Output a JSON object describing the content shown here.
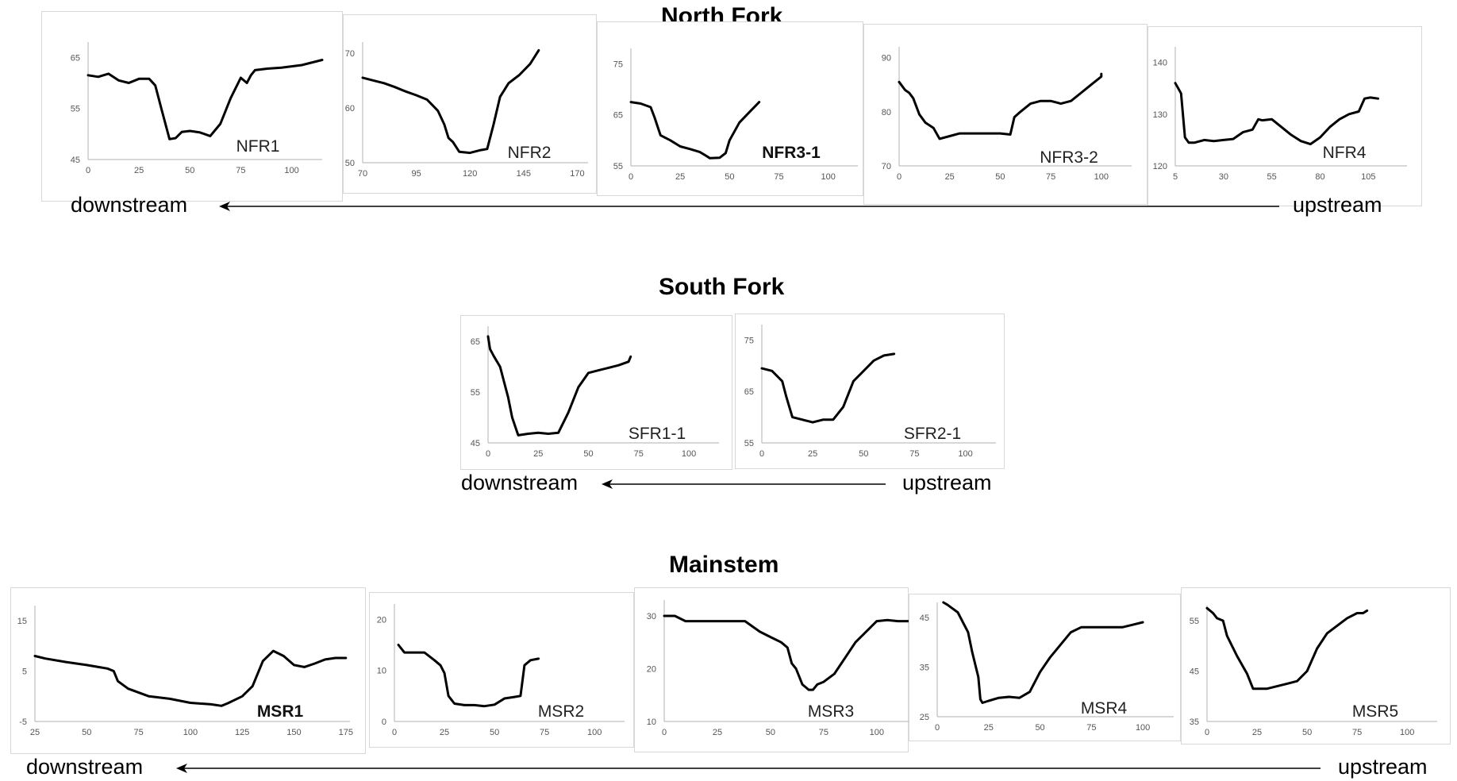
{
  "sections": [
    {
      "id": "north",
      "title": "North Fork",
      "downstream": "downstream",
      "upstream": "upstream"
    },
    {
      "id": "south",
      "title": "South Fork",
      "downstream": "downstream",
      "upstream": "upstream"
    },
    {
      "id": "main",
      "title": "Mainstem",
      "downstream": "downstream",
      "upstream": "upstream"
    }
  ],
  "chart_data": [
    {
      "type": "line",
      "section": "north",
      "label": "NFR1",
      "label_bold": false,
      "xticks": [
        0,
        25,
        50,
        75,
        100
      ],
      "xlim": [
        0,
        115
      ],
      "yticks": [
        45,
        55,
        65
      ],
      "ylim": [
        45,
        68
      ],
      "x": [
        0,
        5,
        10,
        15,
        20,
        25,
        30,
        33,
        36,
        40,
        43,
        46,
        50,
        55,
        60,
        65,
        70,
        75,
        78,
        80,
        82,
        88,
        95,
        105,
        115
      ],
      "y": [
        61.5,
        61.2,
        61.8,
        60.5,
        60,
        60.8,
        60.8,
        59.5,
        55,
        49,
        49.2,
        50.4,
        50.6,
        50.3,
        49.6,
        52,
        57,
        61,
        60,
        61.5,
        62.5,
        62.8,
        63,
        63.5,
        64.5
      ]
    },
    {
      "type": "line",
      "section": "north",
      "label": "NFR2",
      "label_bold": false,
      "xticks": [
        70,
        95,
        120,
        145,
        170
      ],
      "xlim": [
        70,
        175
      ],
      "yticks": [
        50,
        60,
        70
      ],
      "ylim": [
        50,
        72
      ],
      "x": [
        70,
        75,
        80,
        85,
        90,
        95,
        100,
        105,
        108,
        110,
        112,
        115,
        120,
        125,
        128,
        131,
        134,
        138,
        143,
        148,
        152
      ],
      "y": [
        65.5,
        65,
        64.5,
        63.8,
        63,
        62.3,
        61.5,
        59.5,
        57,
        54.5,
        53.8,
        52,
        51.8,
        52.3,
        52.5,
        57,
        62,
        64.5,
        66,
        68,
        70.5
      ]
    },
    {
      "type": "line",
      "section": "north",
      "label": "NFR3-1",
      "label_bold": true,
      "xticks": [
        0,
        25,
        50,
        75,
        100
      ],
      "xlim": [
        0,
        115
      ],
      "yticks": [
        55,
        65,
        75
      ],
      "ylim": [
        55,
        78
      ],
      "x": [
        0,
        5,
        10,
        12,
        15,
        20,
        25,
        30,
        35,
        38,
        40,
        45,
        48,
        50,
        55,
        60,
        65
      ],
      "y": [
        67.5,
        67.2,
        66.5,
        64.5,
        61,
        60,
        58.8,
        58.3,
        57.7,
        57,
        56.5,
        56.6,
        57.5,
        60,
        63.5,
        65.5,
        67.5
      ]
    },
    {
      "type": "line",
      "section": "north",
      "label": "NFR3-2",
      "label_bold": false,
      "xticks": [
        0,
        25,
        50,
        75,
        100
      ],
      "xlim": [
        0,
        115
      ],
      "yticks": [
        70,
        80,
        90
      ],
      "ylim": [
        70,
        92
      ],
      "x": [
        0,
        3,
        5,
        7,
        10,
        13,
        15,
        17,
        20,
        25,
        30,
        40,
        50,
        55,
        57,
        60,
        65,
        70,
        75,
        80,
        85,
        90,
        95,
        100,
        100
      ],
      "y": [
        85.5,
        84,
        83.5,
        82.5,
        79.5,
        78,
        77.5,
        77,
        75,
        75.5,
        76,
        76,
        76,
        75.8,
        79,
        80,
        81.5,
        82,
        82,
        81.5,
        82,
        83.5,
        85,
        86.5,
        87
      ]
    },
    {
      "type": "line",
      "section": "north",
      "label": "NFR4",
      "label_bold": false,
      "xticks": [
        5,
        30,
        55,
        80,
        105
      ],
      "xlim": [
        5,
        125
      ],
      "yticks": [
        120,
        130,
        140
      ],
      "ylim": [
        120,
        143
      ],
      "x": [
        5,
        8,
        10,
        12,
        15,
        20,
        25,
        30,
        35,
        40,
        45,
        48,
        50,
        55,
        60,
        65,
        70,
        75,
        80,
        85,
        90,
        95,
        100,
        103,
        106,
        110
      ],
      "y": [
        136,
        134,
        125.5,
        124.5,
        124.5,
        125,
        124.8,
        125,
        125.2,
        126.5,
        127,
        129,
        128.8,
        129,
        127.5,
        126,
        124.8,
        124.2,
        125.5,
        127.5,
        129,
        130,
        130.5,
        133,
        133.2,
        133
      ]
    },
    {
      "type": "line",
      "section": "south",
      "label": "SFR1-1",
      "label_bold": false,
      "xticks": [
        0,
        25,
        50,
        75,
        100
      ],
      "xlim": [
        0,
        115
      ],
      "yticks": [
        45,
        55,
        65
      ],
      "ylim": [
        45,
        68
      ],
      "x": [
        0,
        1,
        3,
        6,
        8,
        10,
        12,
        15,
        20,
        25,
        30,
        35,
        40,
        45,
        50,
        55,
        60,
        65,
        70,
        71
      ],
      "y": [
        66,
        63.5,
        62,
        60,
        57,
        54,
        50,
        46.5,
        46.8,
        47,
        46.8,
        47,
        51,
        56,
        58.8,
        59.3,
        59.8,
        60.3,
        61,
        62
      ]
    },
    {
      "type": "line",
      "section": "south",
      "label": "SFR2-1",
      "label_bold": false,
      "xticks": [
        0,
        25,
        50,
        75,
        100
      ],
      "xlim": [
        0,
        115
      ],
      "yticks": [
        55,
        65,
        75
      ],
      "ylim": [
        55,
        78
      ],
      "x": [
        0,
        5,
        10,
        12,
        15,
        20,
        25,
        30,
        35,
        40,
        45,
        50,
        55,
        60,
        65
      ],
      "y": [
        69.5,
        69,
        67,
        64,
        60,
        59.5,
        59,
        59.5,
        59.5,
        62,
        67,
        69,
        71,
        72,
        72.3
      ]
    },
    {
      "type": "line",
      "section": "main",
      "label": "MSR1",
      "label_bold": true,
      "xticks": [
        25,
        50,
        75,
        100,
        125,
        150,
        175
      ],
      "xlim": [
        25,
        177
      ],
      "yticks": [
        -5,
        5,
        15
      ],
      "ylim": [
        -5,
        18
      ],
      "x": [
        25,
        30,
        40,
        50,
        60,
        63,
        65,
        70,
        80,
        90,
        100,
        110,
        115,
        118,
        125,
        130,
        135,
        140,
        145,
        150,
        155,
        160,
        165,
        170,
        175
      ],
      "y": [
        8,
        7.5,
        6.8,
        6.2,
        5.5,
        5,
        3,
        1.5,
        0,
        -0.5,
        -1.3,
        -1.6,
        -1.9,
        -1.4,
        0,
        2,
        7,
        9,
        8,
        6.2,
        5.8,
        6.5,
        7.3,
        7.6,
        7.6
      ]
    },
    {
      "type": "line",
      "section": "main",
      "label": "MSR2",
      "label_bold": false,
      "xticks": [
        0,
        25,
        50,
        75,
        100
      ],
      "xlim": [
        0,
        115
      ],
      "yticks": [
        0,
        10,
        20
      ],
      "ylim": [
        0,
        23
      ],
      "x": [
        2,
        5,
        10,
        15,
        20,
        23,
        25,
        27,
        30,
        35,
        40,
        45,
        50,
        55,
        60,
        63,
        65,
        68,
        72
      ],
      "y": [
        15,
        13.5,
        13.5,
        13.5,
        12,
        11,
        9.5,
        5,
        3.5,
        3.2,
        3.2,
        3,
        3.3,
        4.5,
        4.8,
        5,
        11,
        12,
        12.3
      ]
    },
    {
      "type": "line",
      "section": "main",
      "label": "MSR3",
      "label_bold": false,
      "xticks": [
        0,
        25,
        50,
        75,
        100
      ],
      "xlim": [
        0,
        115
      ],
      "yticks": [
        10,
        20,
        30
      ],
      "ylim": [
        10,
        33
      ],
      "x": [
        0,
        5,
        10,
        20,
        30,
        38,
        45,
        50,
        55,
        58,
        60,
        62,
        65,
        68,
        70,
        72,
        75,
        80,
        85,
        90,
        95,
        100,
        105,
        110,
        115
      ],
      "y": [
        30,
        30,
        29,
        29,
        29,
        29,
        27,
        26,
        25,
        24,
        21,
        20,
        17,
        16,
        16,
        17,
        17.5,
        19,
        22,
        25,
        27,
        29,
        29.2,
        29,
        29
      ]
    },
    {
      "type": "line",
      "section": "main",
      "label": "MSR4",
      "label_bold": false,
      "xticks": [
        0,
        25,
        50,
        75,
        100
      ],
      "xlim": [
        0,
        115
      ],
      "yticks": [
        25,
        35,
        45
      ],
      "ylim": [
        25,
        48
      ],
      "x": [
        3,
        5,
        10,
        15,
        17,
        20,
        21,
        22,
        25,
        30,
        35,
        40,
        45,
        50,
        55,
        60,
        65,
        70,
        75,
        80,
        85,
        90,
        95,
        100
      ],
      "y": [
        48,
        47.5,
        46,
        42,
        38,
        33,
        28.5,
        27.8,
        28.2,
        28.8,
        29,
        28.8,
        30,
        34,
        37,
        39.5,
        42,
        43,
        43,
        43,
        43,
        43,
        43.5,
        44
      ]
    },
    {
      "type": "line",
      "section": "main",
      "label": "MSR5",
      "label_bold": false,
      "xticks": [
        0,
        25,
        50,
        75,
        100
      ],
      "xlim": [
        0,
        115
      ],
      "yticks": [
        35,
        45,
        55
      ],
      "ylim": [
        35,
        58
      ],
      "x": [
        0,
        3,
        5,
        8,
        10,
        15,
        20,
        23,
        25,
        30,
        35,
        40,
        45,
        50,
        55,
        60,
        65,
        70,
        75,
        78,
        80
      ],
      "y": [
        57.5,
        56.5,
        55.5,
        55,
        52,
        48,
        44.5,
        41.5,
        41.5,
        41.5,
        42,
        42.5,
        43,
        45,
        49.5,
        52.5,
        54,
        55.5,
        56.5,
        56.5,
        57
      ]
    }
  ]
}
